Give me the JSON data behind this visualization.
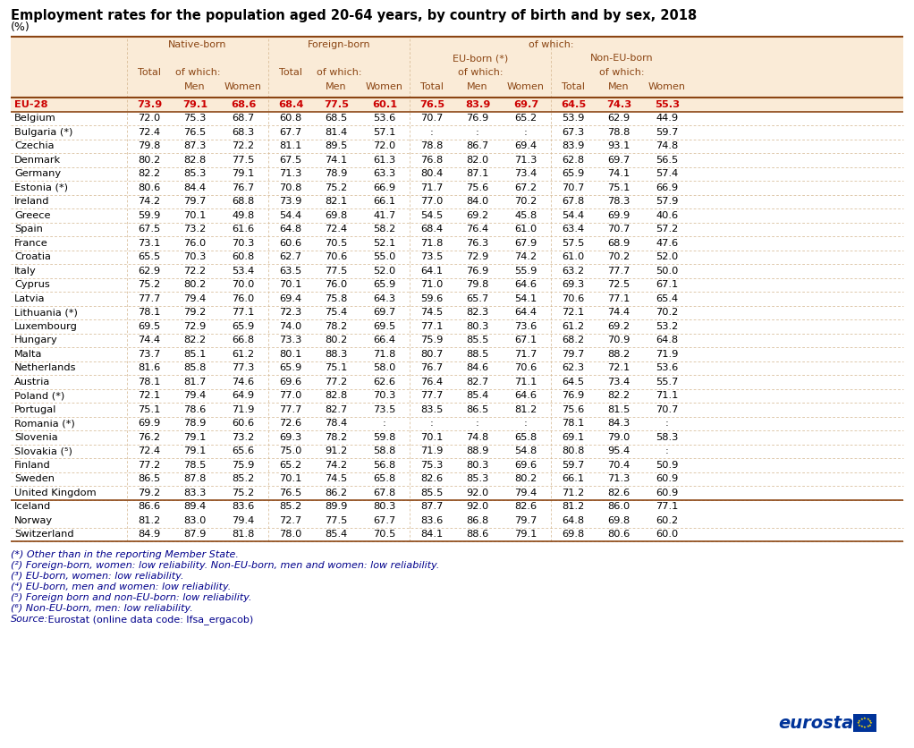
{
  "title": "Employment rates for the population aged 20-64 years, by country of birth and by sex, 2018",
  "subtitle": "(%)",
  "rows": [
    [
      "EU-28",
      "73.9",
      "79.1",
      "68.6",
      "68.4",
      "77.5",
      "60.1",
      "76.5",
      "83.9",
      "69.7",
      "64.5",
      "74.3",
      "55.3"
    ],
    [
      "Belgium",
      "72.0",
      "75.3",
      "68.7",
      "60.8",
      "68.5",
      "53.6",
      "70.7",
      "76.9",
      "65.2",
      "53.9",
      "62.9",
      "44.9"
    ],
    [
      "Bulgaria (*)",
      "72.4",
      "76.5",
      "68.3",
      "67.7",
      "81.4",
      "57.1",
      ":",
      ":",
      ":",
      "67.3",
      "78.8",
      "59.7"
    ],
    [
      "Czechia",
      "79.8",
      "87.3",
      "72.2",
      "81.1",
      "89.5",
      "72.0",
      "78.8",
      "86.7",
      "69.4",
      "83.9",
      "93.1",
      "74.8"
    ],
    [
      "Denmark",
      "80.2",
      "82.8",
      "77.5",
      "67.5",
      "74.1",
      "61.3",
      "76.8",
      "82.0",
      "71.3",
      "62.8",
      "69.7",
      "56.5"
    ],
    [
      "Germany",
      "82.2",
      "85.3",
      "79.1",
      "71.3",
      "78.9",
      "63.3",
      "80.4",
      "87.1",
      "73.4",
      "65.9",
      "74.1",
      "57.4"
    ],
    [
      "Estonia (*)",
      "80.6",
      "84.4",
      "76.7",
      "70.8",
      "75.2",
      "66.9",
      "71.7",
      "75.6",
      "67.2",
      "70.7",
      "75.1",
      "66.9"
    ],
    [
      "Ireland",
      "74.2",
      "79.7",
      "68.8",
      "73.9",
      "82.1",
      "66.1",
      "77.0",
      "84.0",
      "70.2",
      "67.8",
      "78.3",
      "57.9"
    ],
    [
      "Greece",
      "59.9",
      "70.1",
      "49.8",
      "54.4",
      "69.8",
      "41.7",
      "54.5",
      "69.2",
      "45.8",
      "54.4",
      "69.9",
      "40.6"
    ],
    [
      "Spain",
      "67.5",
      "73.2",
      "61.6",
      "64.8",
      "72.4",
      "58.2",
      "68.4",
      "76.4",
      "61.0",
      "63.4",
      "70.7",
      "57.2"
    ],
    [
      "France",
      "73.1",
      "76.0",
      "70.3",
      "60.6",
      "70.5",
      "52.1",
      "71.8",
      "76.3",
      "67.9",
      "57.5",
      "68.9",
      "47.6"
    ],
    [
      "Croatia",
      "65.5",
      "70.3",
      "60.8",
      "62.7",
      "70.6",
      "55.0",
      "73.5",
      "72.9",
      "74.2",
      "61.0",
      "70.2",
      "52.0"
    ],
    [
      "Italy",
      "62.9",
      "72.2",
      "53.4",
      "63.5",
      "77.5",
      "52.0",
      "64.1",
      "76.9",
      "55.9",
      "63.2",
      "77.7",
      "50.0"
    ],
    [
      "Cyprus",
      "75.2",
      "80.2",
      "70.0",
      "70.1",
      "76.0",
      "65.9",
      "71.0",
      "79.8",
      "64.6",
      "69.3",
      "72.5",
      "67.1"
    ],
    [
      "Latvia",
      "77.7",
      "79.4",
      "76.0",
      "69.4",
      "75.8",
      "64.3",
      "59.6",
      "65.7",
      "54.1",
      "70.6",
      "77.1",
      "65.4"
    ],
    [
      "Lithuania (*)",
      "78.1",
      "79.2",
      "77.1",
      "72.3",
      "75.4",
      "69.7",
      "74.5",
      "82.3",
      "64.4",
      "72.1",
      "74.4",
      "70.2"
    ],
    [
      "Luxembourg",
      "69.5",
      "72.9",
      "65.9",
      "74.0",
      "78.2",
      "69.5",
      "77.1",
      "80.3",
      "73.6",
      "61.2",
      "69.2",
      "53.2"
    ],
    [
      "Hungary",
      "74.4",
      "82.2",
      "66.8",
      "73.3",
      "80.2",
      "66.4",
      "75.9",
      "85.5",
      "67.1",
      "68.2",
      "70.9",
      "64.8"
    ],
    [
      "Malta",
      "73.7",
      "85.1",
      "61.2",
      "80.1",
      "88.3",
      "71.8",
      "80.7",
      "88.5",
      "71.7",
      "79.7",
      "88.2",
      "71.9"
    ],
    [
      "Netherlands",
      "81.6",
      "85.8",
      "77.3",
      "65.9",
      "75.1",
      "58.0",
      "76.7",
      "84.6",
      "70.6",
      "62.3",
      "72.1",
      "53.6"
    ],
    [
      "Austria",
      "78.1",
      "81.7",
      "74.6",
      "69.6",
      "77.2",
      "62.6",
      "76.4",
      "82.7",
      "71.1",
      "64.5",
      "73.4",
      "55.7"
    ],
    [
      "Poland (*)",
      "72.1",
      "79.4",
      "64.9",
      "77.0",
      "82.8",
      "70.3",
      "77.7",
      "85.4",
      "64.6",
      "76.9",
      "82.2",
      "71.1"
    ],
    [
      "Portugal",
      "75.1",
      "78.6",
      "71.9",
      "77.7",
      "82.7",
      "73.5",
      "83.5",
      "86.5",
      "81.2",
      "75.6",
      "81.5",
      "70.7"
    ],
    [
      "Romania (*)",
      "69.9",
      "78.9",
      "60.6",
      "72.6",
      "78.4",
      ":",
      ":",
      ":",
      ":",
      "78.1",
      "84.3",
      ":"
    ],
    [
      "Slovenia",
      "76.2",
      "79.1",
      "73.2",
      "69.3",
      "78.2",
      "59.8",
      "70.1",
      "74.8",
      "65.8",
      "69.1",
      "79.0",
      "58.3"
    ],
    [
      "Slovakia (⁵)",
      "72.4",
      "79.1",
      "65.6",
      "75.0",
      "91.2",
      "58.8",
      "71.9",
      "88.9",
      "54.8",
      "80.8",
      "95.4",
      ":"
    ],
    [
      "Finland",
      "77.2",
      "78.5",
      "75.9",
      "65.2",
      "74.2",
      "56.8",
      "75.3",
      "80.3",
      "69.6",
      "59.7",
      "70.4",
      "50.9"
    ],
    [
      "Sweden",
      "86.5",
      "87.8",
      "85.2",
      "70.1",
      "74.5",
      "65.8",
      "82.6",
      "85.3",
      "80.2",
      "66.1",
      "71.3",
      "60.9"
    ],
    [
      "United Kingdom",
      "79.2",
      "83.3",
      "75.2",
      "76.5",
      "86.2",
      "67.8",
      "85.5",
      "92.0",
      "79.4",
      "71.2",
      "82.6",
      "60.9"
    ],
    [
      "Iceland",
      "86.6",
      "89.4",
      "83.6",
      "85.2",
      "89.9",
      "80.3",
      "87.7",
      "92.0",
      "82.6",
      "81.2",
      "86.0",
      "77.1"
    ],
    [
      "Norway",
      "81.2",
      "83.0",
      "79.4",
      "72.7",
      "77.5",
      "67.7",
      "83.6",
      "86.8",
      "79.7",
      "64.8",
      "69.8",
      "60.2"
    ],
    [
      "Switzerland",
      "84.9",
      "87.9",
      "81.8",
      "78.0",
      "85.4",
      "70.5",
      "84.1",
      "88.6",
      "79.1",
      "69.8",
      "80.6",
      "60.0"
    ]
  ],
  "gap_before": [
    "Iceland"
  ],
  "footnotes": [
    [
      "(*) Other than in the reporting Member State.",
      "italic",
      "#00008B"
    ],
    [
      "(²) Foreign-born, women: low reliability. Non-EU-born, men and women: low reliability.",
      "italic",
      "#00008B"
    ],
    [
      "(³) EU-born, women: low reliability.",
      "italic",
      "#00008B"
    ],
    [
      "(⁴) EU-born, men and women: low reliability.",
      "italic",
      "#00008B"
    ],
    [
      "(⁵) Foreign born and non-EU-born: low reliability.",
      "italic",
      "#00008B"
    ],
    [
      "(⁶) Non-EU-born, men: low reliability.",
      "italic",
      "#00008B"
    ],
    [
      "Source: Eurostat (online data code: lfsa_ergacob)",
      "italic",
      "#00008B"
    ]
  ],
  "header_bg": "#FAEBD7",
  "brown": "#8B4513",
  "dark_red": "#CC0000",
  "sep_color": "#D2B48C",
  "thick_line_color": "#8B4513"
}
